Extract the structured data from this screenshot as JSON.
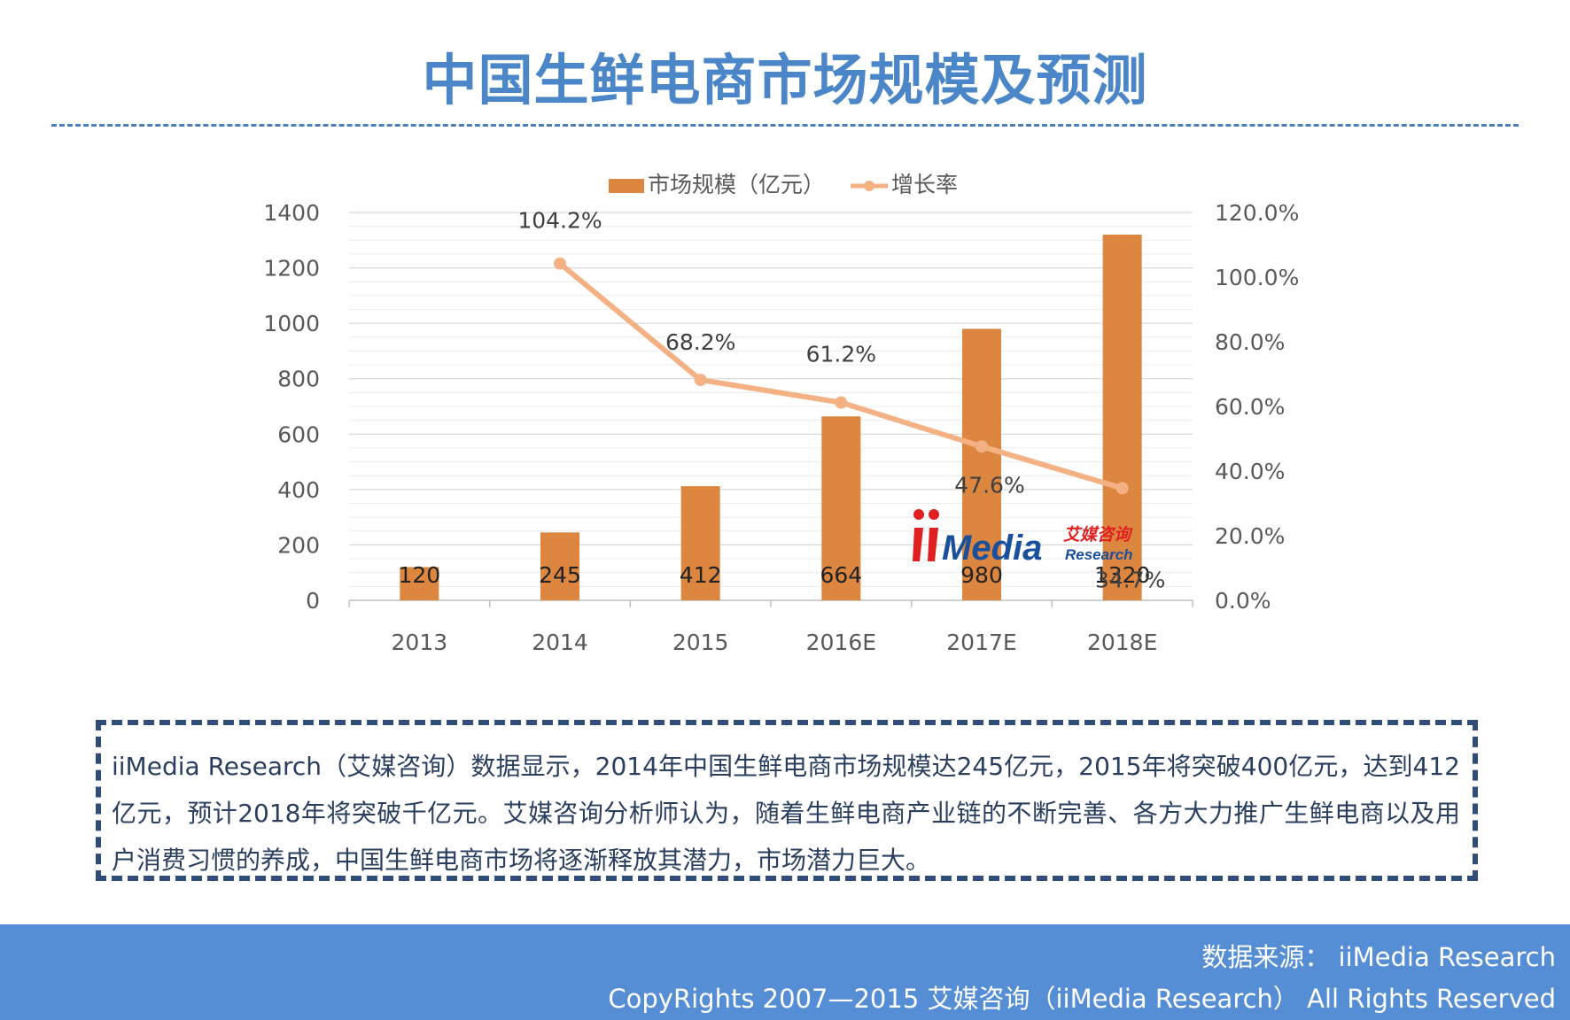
{
  "page": {
    "title": "中国生鲜电商市场规模及预测"
  },
  "chart_data": {
    "type": "bar",
    "categories": [
      "2013",
      "2014",
      "2015",
      "2016E",
      "2017E",
      "2018E"
    ],
    "series": [
      {
        "name": "市场规模（亿元）",
        "type": "bar",
        "axis": "left",
        "values": [
          120,
          245,
          412,
          664,
          980,
          1320
        ],
        "data_labels": [
          "120",
          "245",
          "412",
          "664",
          "980",
          "1320"
        ]
      },
      {
        "name": "增长率",
        "type": "line",
        "axis": "right",
        "values": [
          null,
          104.2,
          68.2,
          61.2,
          47.6,
          34.7
        ],
        "data_labels": [
          "",
          "104.2%",
          "68.2%",
          "61.2%",
          "47.6%",
          "34.7%"
        ]
      }
    ],
    "left_axis": {
      "ylim": [
        0,
        1400
      ],
      "ticks": [
        "0",
        "200",
        "400",
        "600",
        "800",
        "1000",
        "1200",
        "1400"
      ]
    },
    "right_axis": {
      "ylim": [
        0,
        120
      ],
      "ticks": [
        "0.0%",
        "20.0%",
        "40.0%",
        "60.0%",
        "80.0%",
        "100.0%",
        "120.0%"
      ]
    },
    "legend_position": "top-center",
    "grid": true,
    "colors": {
      "bar": "#dd8640",
      "line": "#f4b183",
      "grid": "#d9d9d9",
      "text": "#595959"
    }
  },
  "logo": {
    "brand": "iiMedia",
    "cn_text": "艾媒咨询",
    "sub_text": "Research"
  },
  "description": "iiMedia  Research（艾媒咨询）数据显示，2014年中国生鲜电商市场规模达245亿元，2015年将突破400亿元，达到412亿元，预计2018年将突破千亿元。艾媒咨询分析师认为，随着生鲜电商产业链的不断完善、各方大力推广生鲜电商以及用户消费习惯的养成，中国生鲜电商市场将逐渐释放其潜力，市场潜力巨大。",
  "footer": {
    "source": "数据来源： iiMedia Research",
    "copyright": "CopyRights 2007—2015 艾媒咨询（iiMedia Research） All Rights Reserved"
  },
  "colors": {
    "title": "#4a86c8",
    "footer_bg": "#558ed5",
    "box_border": "#2f4d77"
  }
}
